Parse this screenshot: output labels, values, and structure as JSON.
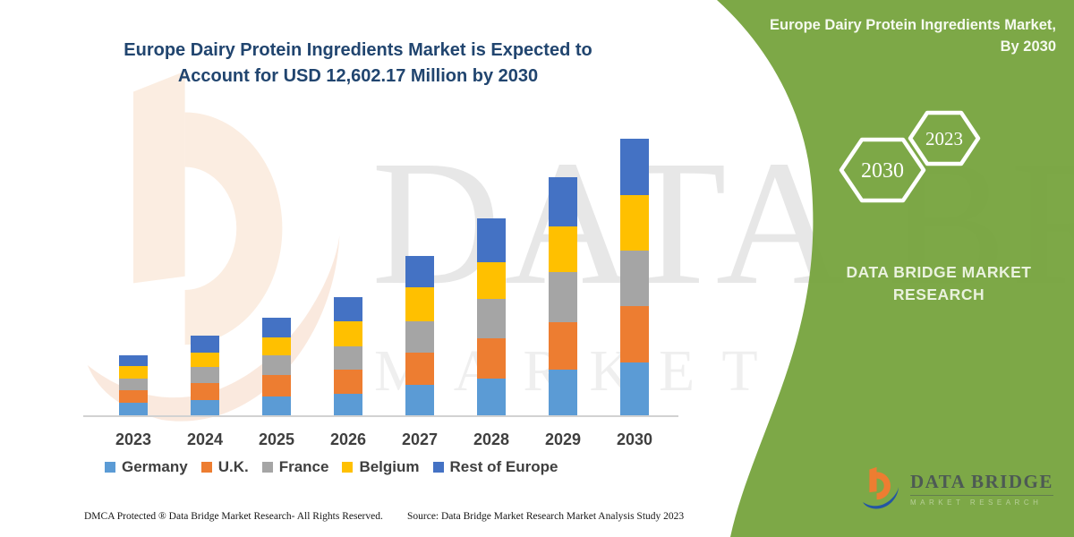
{
  "page": {
    "footer_left": "DMCA Protected ® Data Bridge Market Research- All Rights Reserved.",
    "footer_source": "Source: Data Bridge Market Research Market Analysis Study 2023"
  },
  "right_panel": {
    "green_color": "#76A33D",
    "title": "Europe Dairy Protein Ingredients Market, By 2030",
    "hexagons": [
      "2030",
      "2023"
    ],
    "brand_text": "DATA BRIDGE MARKET RESEARCH",
    "logo": {
      "name": "DATA BRIDGE",
      "subtitle": "MARKET RESEARCH"
    }
  },
  "watermark": {
    "text1": "DATA BRIDGE",
    "text2": "MARKET RESEARCH"
  },
  "chart_data": {
    "type": "bar",
    "stacked": true,
    "title": "Europe Dairy Protein Ingredients Market is Expected to Account for USD 12,602.17 Million by 2030",
    "units": "USD Million",
    "categories": [
      "2023",
      "2024",
      "2025",
      "2026",
      "2027",
      "2028",
      "2029",
      "2030"
    ],
    "series": [
      {
        "name": "Germany",
        "color": "#5B9BD5",
        "values": [
          610,
          732,
          894,
          1016,
          1423,
          1707,
          2114,
          2439
        ]
      },
      {
        "name": "U.K.",
        "color": "#ED7D31",
        "values": [
          569,
          772,
          976,
          1098,
          1463,
          1829,
          2155,
          2561
        ]
      },
      {
        "name": "France",
        "color": "#A5A5A5",
        "values": [
          528,
          732,
          894,
          1057,
          1423,
          1789,
          2276,
          2520
        ]
      },
      {
        "name": "Belgium",
        "color": "#FFC000",
        "values": [
          569,
          650,
          813,
          1138,
          1545,
          1667,
          2073,
          2520
        ]
      },
      {
        "name": "Rest of Europe",
        "color": "#4472C4",
        "values": [
          488,
          772,
          894,
          1098,
          1423,
          1992,
          2236,
          2561
        ]
      }
    ],
    "totals_estimated": [
      2764,
      3658,
      4471,
      5407,
      7277,
      8984,
      10854,
      12601
    ],
    "highlight_value_2030": "USD 12,602.17 Million",
    "legend_position": "bottom",
    "gridlines": false,
    "y_axis_visible": false
  }
}
